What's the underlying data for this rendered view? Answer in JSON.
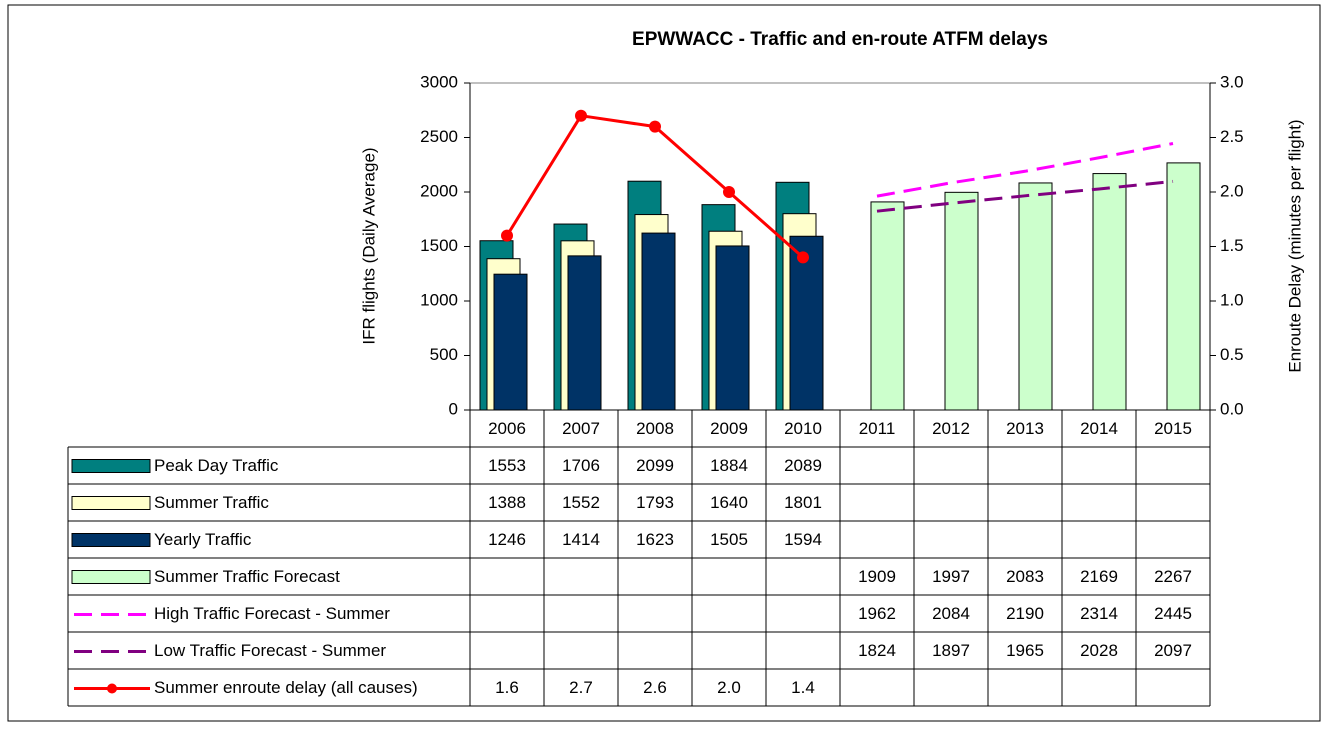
{
  "chart_data": {
    "type": "bar",
    "title": "EPWWACC - Traffic and en-route ATFM delays",
    "y_label": "IFR flights (Daily Average)",
    "y2_label": "Enroute Delay (minutes per flight)",
    "categories": [
      "2006",
      "2007",
      "2008",
      "2009",
      "2010",
      "2011",
      "2012",
      "2013",
      "2014",
      "2015"
    ],
    "ylim": [
      0,
      3000
    ],
    "yticks": [
      0,
      500,
      1000,
      1500,
      2000,
      2500,
      3000
    ],
    "y2lim": [
      0,
      3
    ],
    "y2ticks": [
      {
        "value": 0,
        "label": "0.0"
      },
      {
        "value": 0.5,
        "label": "0.5"
      },
      {
        "value": 1,
        "label": "1.0"
      },
      {
        "value": 1.5,
        "label": "1.5"
      },
      {
        "value": 2,
        "label": "2.0"
      },
      {
        "value": 2.5,
        "label": "2.5"
      },
      {
        "value": 3,
        "label": "3.0"
      }
    ],
    "series": [
      {
        "name": "Peak Day Traffic",
        "type": "bar",
        "color": "#007f7f",
        "values": [
          1553,
          1706,
          2099,
          1884,
          2089,
          null,
          null,
          null,
          null,
          null
        ]
      },
      {
        "name": "Summer Traffic",
        "type": "bar",
        "color": "#ffffcc",
        "values": [
          1388,
          1552,
          1793,
          1640,
          1801,
          null,
          null,
          null,
          null,
          null
        ]
      },
      {
        "name": "Yearly Traffic",
        "type": "bar",
        "color": "#003366",
        "values": [
          1246,
          1414,
          1623,
          1505,
          1594,
          null,
          null,
          null,
          null,
          null
        ]
      },
      {
        "name": "Summer Traffic Forecast",
        "type": "bar",
        "color": "#ccffcc",
        "values": [
          null,
          null,
          null,
          null,
          null,
          1909,
          1997,
          2083,
          2169,
          2267
        ]
      },
      {
        "name": "High Traffic Forecast - Summer",
        "type": "line",
        "dashed": true,
        "color": "#ff00ff",
        "values": [
          null,
          null,
          null,
          null,
          null,
          1962,
          2084,
          2190,
          2314,
          2445
        ]
      },
      {
        "name": "Low Traffic Forecast - Summer",
        "type": "line",
        "dashed": true,
        "color": "#800080",
        "values": [
          null,
          null,
          null,
          null,
          null,
          1824,
          1897,
          1965,
          2028,
          2097
        ]
      },
      {
        "name": "Summer enroute delay (all causes)",
        "type": "line",
        "markers": true,
        "axis": "y2",
        "color": "#ff0000",
        "values": [
          1.6,
          2.7,
          2.6,
          2.0,
          1.4,
          null,
          null,
          null,
          null,
          null
        ],
        "value_labels": [
          "1.6",
          "2.7",
          "2.6",
          "2.0",
          "1.4",
          null,
          null,
          null,
          null,
          null
        ]
      }
    ]
  }
}
